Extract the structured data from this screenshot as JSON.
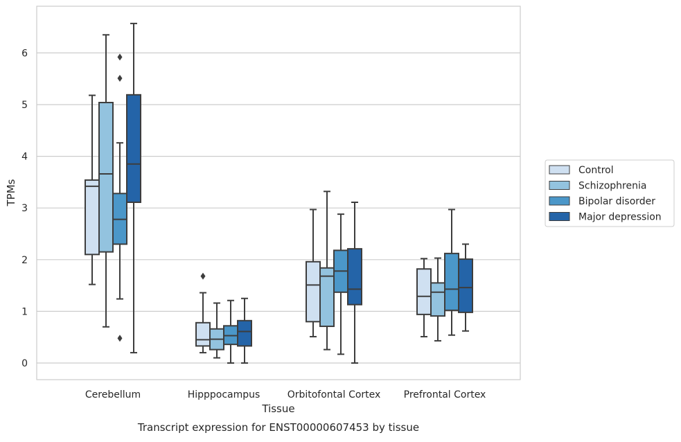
{
  "caption": "Transcript expression for ENST00000607453 by tissue",
  "colors": {
    "series": [
      "#cfe0f1",
      "#93c3df",
      "#4b97c9",
      "#2464a8"
    ],
    "box_edge": "#3d3d3d",
    "grid": "#cccccc",
    "frame": "#cccccc"
  },
  "chart_data": {
    "type": "box",
    "xlabel": "Tissue",
    "ylabel": "TPMs",
    "ylim": [
      -0.3,
      6.9
    ],
    "yticks": [
      0,
      1,
      2,
      3,
      4,
      5,
      6
    ],
    "grid": "horizontal",
    "legend_position": "right",
    "categories": [
      "Cerebellum",
      "Hipppocampus",
      "Orbitofontal Cortex",
      "Prefrontal Cortex"
    ],
    "series": [
      {
        "name": "Control",
        "boxes": [
          {
            "whisker_low": 1.52,
            "q1": 2.1,
            "median": 3.42,
            "q3": 3.54,
            "whisker_high": 5.18,
            "outliers": []
          },
          {
            "whisker_low": 0.2,
            "q1": 0.33,
            "median": 0.45,
            "q3": 0.78,
            "whisker_high": 1.36,
            "outliers": [
              1.68
            ]
          },
          {
            "whisker_low": 0.51,
            "q1": 0.8,
            "median": 1.51,
            "q3": 1.96,
            "whisker_high": 2.97,
            "outliers": []
          },
          {
            "whisker_low": 0.51,
            "q1": 0.94,
            "median": 1.29,
            "q3": 1.82,
            "whisker_high": 2.02,
            "outliers": []
          }
        ]
      },
      {
        "name": "Schizophrenia",
        "boxes": [
          {
            "whisker_low": 0.7,
            "q1": 2.15,
            "median": 3.66,
            "q3": 5.04,
            "whisker_high": 6.35,
            "outliers": []
          },
          {
            "whisker_low": 0.1,
            "q1": 0.26,
            "median": 0.46,
            "q3": 0.66,
            "whisker_high": 1.16,
            "outliers": []
          },
          {
            "whisker_low": 0.26,
            "q1": 0.71,
            "median": 1.68,
            "q3": 1.84,
            "whisker_high": 3.32,
            "outliers": []
          },
          {
            "whisker_low": 0.43,
            "q1": 0.91,
            "median": 1.37,
            "q3": 1.55,
            "whisker_high": 2.03,
            "outliers": []
          }
        ]
      },
      {
        "name": "Bipolar disorder",
        "boxes": [
          {
            "whisker_low": 1.24,
            "q1": 2.3,
            "median": 2.78,
            "q3": 3.28,
            "whisker_high": 4.26,
            "outliers": [
              5.92,
              5.51,
              0.48
            ]
          },
          {
            "whisker_low": 0.0,
            "q1": 0.36,
            "median": 0.53,
            "q3": 0.72,
            "whisker_high": 1.21,
            "outliers": []
          },
          {
            "whisker_low": 0.17,
            "q1": 1.37,
            "median": 1.78,
            "q3": 2.18,
            "whisker_high": 2.88,
            "outliers": []
          },
          {
            "whisker_low": 0.54,
            "q1": 1.02,
            "median": 1.43,
            "q3": 2.12,
            "whisker_high": 2.97,
            "outliers": []
          }
        ]
      },
      {
        "name": "Major depression",
        "boxes": [
          {
            "whisker_low": 0.2,
            "q1": 3.11,
            "median": 3.85,
            "q3": 5.19,
            "whisker_high": 6.57,
            "outliers": []
          },
          {
            "whisker_low": 0.0,
            "q1": 0.33,
            "median": 0.61,
            "q3": 0.82,
            "whisker_high": 1.25,
            "outliers": []
          },
          {
            "whisker_low": 0.0,
            "q1": 1.13,
            "median": 1.43,
            "q3": 2.21,
            "whisker_high": 3.11,
            "outliers": []
          },
          {
            "whisker_low": 0.62,
            "q1": 0.98,
            "median": 1.46,
            "q3": 2.01,
            "whisker_high": 2.3,
            "outliers": []
          }
        ]
      }
    ]
  }
}
